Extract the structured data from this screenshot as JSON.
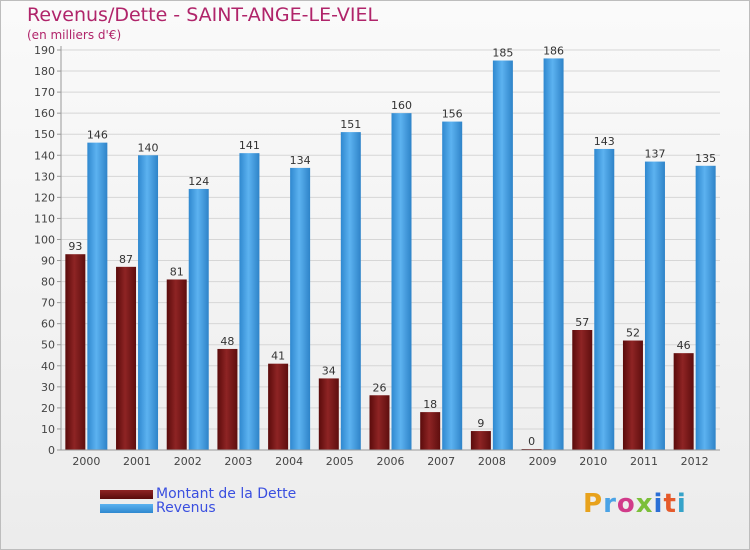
{
  "header": {
    "title": "Revenus/Dette - SAINT-ANGE-LE-VIEL",
    "subtitle": "(en milliers d'€)"
  },
  "colors": {
    "debt": "#7b1818",
    "revenue": "#4aa3e6",
    "title": "#b0246a",
    "legend_text": "#3a4fe0"
  },
  "legend": {
    "debt_label": "Montant de la Dette",
    "revenue_label": "Revenus"
  },
  "logo": {
    "text": "Proxiti",
    "icon": "proxiti-logo"
  },
  "chart_data": {
    "type": "bar",
    "categories": [
      "2000",
      "2001",
      "2002",
      "2003",
      "2004",
      "2005",
      "2006",
      "2007",
      "2008",
      "2009",
      "2010",
      "2011",
      "2012"
    ],
    "series": [
      {
        "name": "Montant de la Dette",
        "values": [
          93,
          87,
          81,
          48,
          41,
          34,
          26,
          18,
          9,
          0,
          57,
          52,
          46
        ]
      },
      {
        "name": "Revenus",
        "values": [
          146,
          140,
          124,
          141,
          134,
          151,
          160,
          156,
          185,
          186,
          143,
          137,
          135
        ]
      }
    ],
    "title": "Revenus/Dette - SAINT-ANGE-LE-VIEL",
    "ylabel": "(en milliers d'€)",
    "ylim": [
      0,
      190
    ],
    "yticks": [
      0,
      10,
      20,
      30,
      40,
      50,
      60,
      70,
      80,
      90,
      100,
      110,
      120,
      130,
      140,
      150,
      160,
      170,
      180,
      190
    ],
    "grid": true,
    "legend_position": "bottom-left"
  }
}
